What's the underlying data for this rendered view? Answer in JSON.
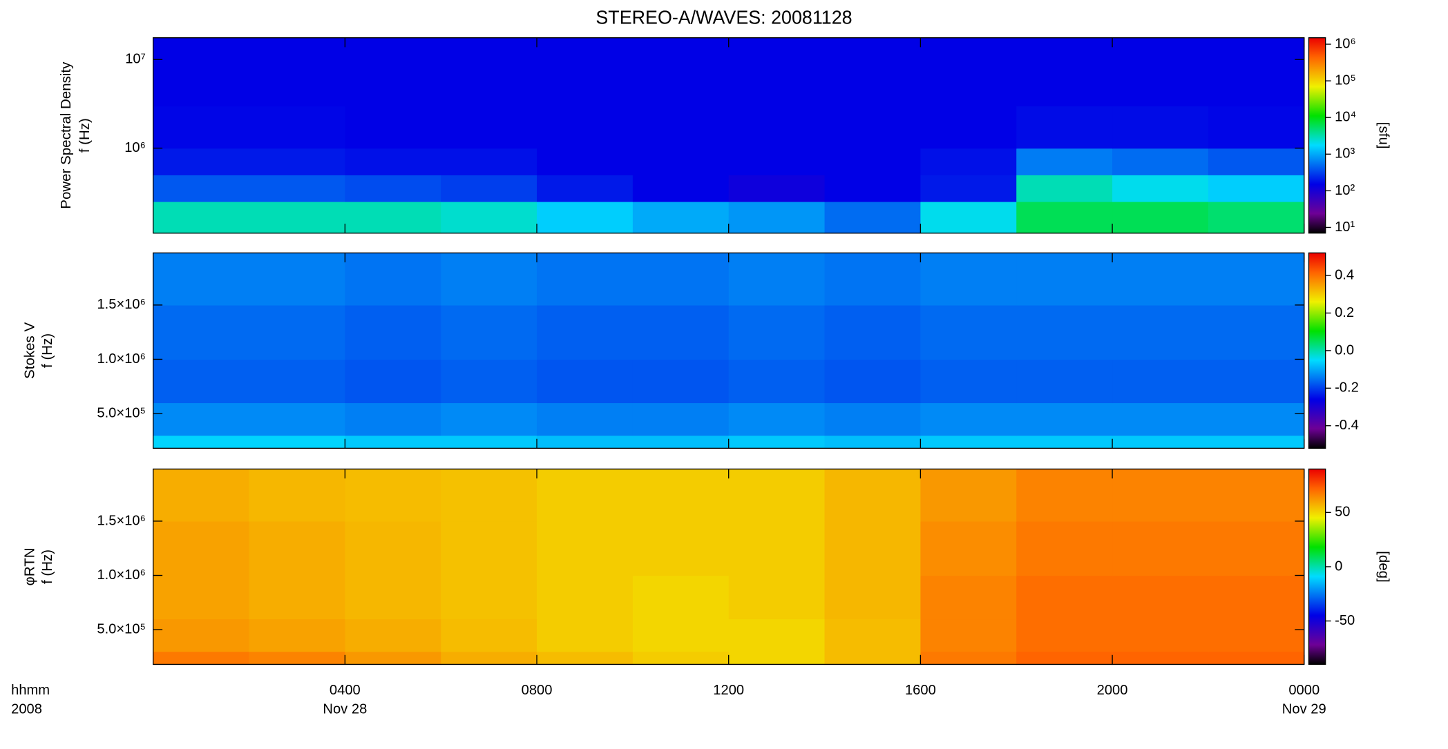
{
  "chart_data": [
    {
      "type": "heatmap",
      "title": "STEREO-A/WAVES: 20081128",
      "ylabel": [
        "Power Spectral Density",
        "f (Hz)"
      ],
      "xlim": [
        0,
        24
      ],
      "xticks": [
        4,
        8,
        12,
        16,
        20,
        24
      ],
      "ylog": true,
      "ylim": [
        110000,
        17600000
      ],
      "yticks": [
        {
          "value": 1000000,
          "label": "10⁶"
        },
        {
          "value": 10000000,
          "label": "10⁷"
        }
      ],
      "x_bins": [
        0,
        2,
        4,
        6,
        8,
        10,
        12,
        14,
        16,
        18,
        20,
        22,
        24
      ],
      "y_bins": [
        110000,
        250000,
        500000,
        1000000,
        3000000,
        17600000
      ],
      "z": [
        [
          3000,
          3000,
          3000,
          2500,
          1500,
          1000,
          800,
          500,
          2000,
          6000,
          6000,
          5000
        ],
        [
          400,
          400,
          350,
          300,
          200,
          150,
          120,
          150,
          200,
          3000,
          2000,
          1500
        ],
        [
          200,
          200,
          180,
          180,
          150,
          150,
          150,
          150,
          180,
          600,
          500,
          400
        ],
        [
          160,
          160,
          150,
          150,
          150,
          150,
          150,
          150,
          150,
          170,
          170,
          160
        ],
        [
          150,
          150,
          150,
          150,
          150,
          150,
          150,
          150,
          150,
          150,
          150,
          150
        ]
      ],
      "colormap": "rainbow",
      "zlog": true,
      "zlim": [
        7,
        1500000
      ],
      "zticks": [
        {
          "value": 10,
          "label": "10¹"
        },
        {
          "value": 100,
          "label": "10²"
        },
        {
          "value": 1000,
          "label": "10³"
        },
        {
          "value": 10000,
          "label": "10⁴"
        },
        {
          "value": 100000,
          "label": "10⁵"
        },
        {
          "value": 1000000,
          "label": "10⁶"
        }
      ],
      "zlabel": "[sfu]"
    },
    {
      "type": "heatmap",
      "ylabel": [
        "Stokes V",
        "f (Hz)"
      ],
      "xlim": [
        0,
        24
      ],
      "xticks": [
        4,
        8,
        12,
        16,
        20,
        24
      ],
      "ylim": [
        180000,
        1980000
      ],
      "yticks": [
        {
          "value": 500000,
          "label": "5.0×10⁵"
        },
        {
          "value": 1000000,
          "label": "1.0×10⁶"
        },
        {
          "value": 1500000,
          "label": "1.5×10⁶"
        }
      ],
      "x_bins": [
        0,
        2,
        4,
        6,
        8,
        10,
        12,
        14,
        16,
        18,
        20,
        22,
        24
      ],
      "y_bins": [
        180000,
        300000,
        600000,
        1000000,
        1500000,
        1980000
      ],
      "z": [
        [
          -0.06,
          -0.06,
          -0.07,
          -0.07,
          -0.08,
          -0.08,
          -0.07,
          -0.08,
          -0.07,
          -0.07,
          -0.07,
          -0.07
        ],
        [
          -0.13,
          -0.13,
          -0.14,
          -0.13,
          -0.14,
          -0.14,
          -0.13,
          -0.14,
          -0.13,
          -0.13,
          -0.13,
          -0.13
        ],
        [
          -0.17,
          -0.17,
          -0.18,
          -0.17,
          -0.18,
          -0.18,
          -0.17,
          -0.18,
          -0.17,
          -0.17,
          -0.17,
          -0.17
        ],
        [
          -0.16,
          -0.16,
          -0.17,
          -0.16,
          -0.17,
          -0.17,
          -0.16,
          -0.17,
          -0.16,
          -0.16,
          -0.16,
          -0.16
        ],
        [
          -0.14,
          -0.14,
          -0.15,
          -0.14,
          -0.15,
          -0.15,
          -0.14,
          -0.15,
          -0.14,
          -0.14,
          -0.14,
          -0.14
        ]
      ],
      "colormap": "rainbow",
      "zlim": [
        -0.52,
        0.52
      ],
      "zticks": [
        -0.4,
        -0.2,
        {
          "value": 0,
          "label": "0.0"
        },
        0.2,
        0.4
      ]
    },
    {
      "type": "heatmap",
      "ylabel": [
        "φRTN",
        "f (Hz)"
      ],
      "xlabel": [
        "hhmm",
        "2008"
      ],
      "xlim": [
        0,
        24
      ],
      "xticks": [
        {
          "value": 4,
          "label": "0400"
        },
        {
          "value": 8,
          "label": "0800"
        },
        {
          "value": 12,
          "label": "1200"
        },
        {
          "value": 16,
          "label": "1600"
        },
        {
          "value": 20,
          "label": "2000"
        },
        {
          "value": 24,
          "label": "0000"
        }
      ],
      "xtick_dates": [
        {
          "value": 4,
          "label": "Nov 28"
        },
        {
          "value": 24,
          "label": "Nov 29"
        }
      ],
      "ylim": [
        180000,
        1980000
      ],
      "yticks": [
        {
          "value": 500000,
          "label": "5.0×10⁵"
        },
        {
          "value": 1000000,
          "label": "1.0×10⁶"
        },
        {
          "value": 1500000,
          "label": "1.5×10⁶"
        }
      ],
      "x_bins": [
        0,
        2,
        4,
        6,
        8,
        10,
        12,
        14,
        16,
        18,
        20,
        22,
        24
      ],
      "y_bins": [
        180000,
        300000,
        600000,
        1000000,
        1500000,
        1980000
      ],
      "z": [
        [
          68,
          66,
          62,
          58,
          55,
          52,
          50,
          55,
          68,
          72,
          72,
          72
        ],
        [
          62,
          60,
          58,
          55,
          52,
          50,
          50,
          55,
          66,
          70,
          70,
          70
        ],
        [
          60,
          58,
          56,
          54,
          52,
          50,
          52,
          56,
          66,
          70,
          70,
          70
        ],
        [
          60,
          58,
          56,
          54,
          52,
          52,
          52,
          56,
          64,
          68,
          68,
          68
        ],
        [
          58,
          56,
          55,
          54,
          52,
          52,
          52,
          56,
          62,
          66,
          66,
          66
        ]
      ],
      "colormap": "rainbow",
      "zlim": [
        -90,
        90
      ],
      "zticks": [
        -50,
        0,
        50
      ],
      "zlabel": "[deg]"
    }
  ]
}
